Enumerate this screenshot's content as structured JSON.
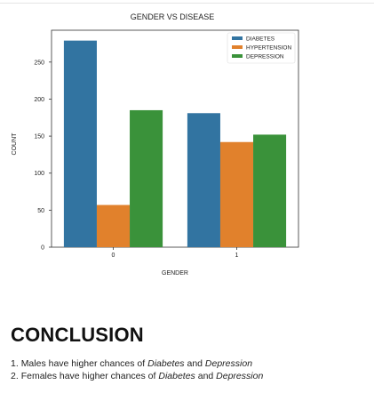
{
  "chart_data": {
    "type": "bar",
    "title": "GENDER VS DISEASE",
    "xlabel": "GENDER",
    "ylabel": "COUNT",
    "categories": [
      "0",
      "1"
    ],
    "series": [
      {
        "name": "DIABETES",
        "values": [
          279,
          181
        ],
        "color": "#3274a1"
      },
      {
        "name": "HYPERTENSION",
        "values": [
          57,
          142
        ],
        "color": "#e1812c"
      },
      {
        "name": "DEPRESSION",
        "values": [
          185,
          152
        ],
        "color": "#3a923a"
      }
    ],
    "yticks": [
      0,
      50,
      100,
      150,
      200,
      250
    ],
    "ylim": [
      0,
      293
    ],
    "grid": false,
    "legend_position": "top-right"
  },
  "conclusion": {
    "heading": "CONCLUSION",
    "items": [
      {
        "number": "1.",
        "prefix": "Males have higher chances of ",
        "first": "Diabetes",
        "middle": " and ",
        "second": "Depression"
      },
      {
        "number": "2.",
        "prefix": "Females have higher chances of ",
        "first": "Diabetes",
        "middle": " and ",
        "second": "Depression"
      }
    ]
  }
}
